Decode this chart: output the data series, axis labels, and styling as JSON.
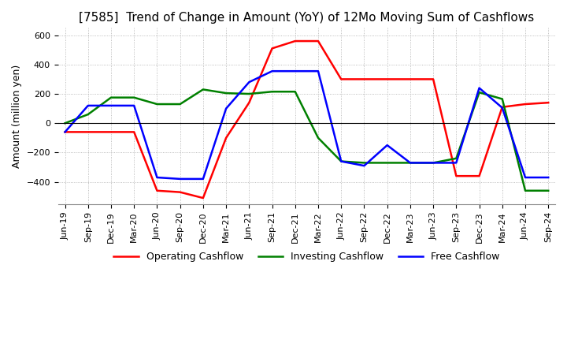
{
  "title": "[7585]  Trend of Change in Amount (YoY) of 12Mo Moving Sum of Cashflows",
  "ylabel": "Amount (million yen)",
  "ylim": [
    -550,
    650
  ],
  "yticks": [
    -400,
    -200,
    0,
    200,
    400,
    600
  ],
  "labels": [
    "Jun-19",
    "Sep-19",
    "Dec-19",
    "Mar-20",
    "Jun-20",
    "Sep-20",
    "Dec-20",
    "Mar-21",
    "Jun-21",
    "Sep-21",
    "Dec-21",
    "Mar-22",
    "Jun-22",
    "Sep-22",
    "Dec-22",
    "Mar-23",
    "Jun-23",
    "Sep-23",
    "Dec-23",
    "Mar-24",
    "Jun-24",
    "Sep-24"
  ],
  "operating": [
    -60,
    -60,
    -60,
    -60,
    -460,
    -470,
    -510,
    -100,
    140,
    510,
    560,
    560,
    300,
    300,
    300,
    300,
    300,
    -360,
    -360,
    110,
    130,
    140
  ],
  "investing": [
    0,
    60,
    175,
    175,
    130,
    130,
    230,
    205,
    200,
    215,
    215,
    -100,
    -260,
    -270,
    -270,
    -270,
    -270,
    -240,
    210,
    165,
    -460,
    -460
  ],
  "free": [
    -60,
    120,
    120,
    120,
    -370,
    -380,
    -380,
    100,
    280,
    355,
    355,
    355,
    -260,
    -290,
    -150,
    -270,
    -270,
    -270,
    240,
    105,
    -370,
    -370
  ],
  "operating_color": "#ff0000",
  "investing_color": "#008000",
  "free_color": "#0000ff",
  "background_color": "#ffffff",
  "grid_color": "#aaaaaa",
  "title_fontsize": 11,
  "label_fontsize": 9,
  "tick_fontsize": 8,
  "legend_fontsize": 9
}
